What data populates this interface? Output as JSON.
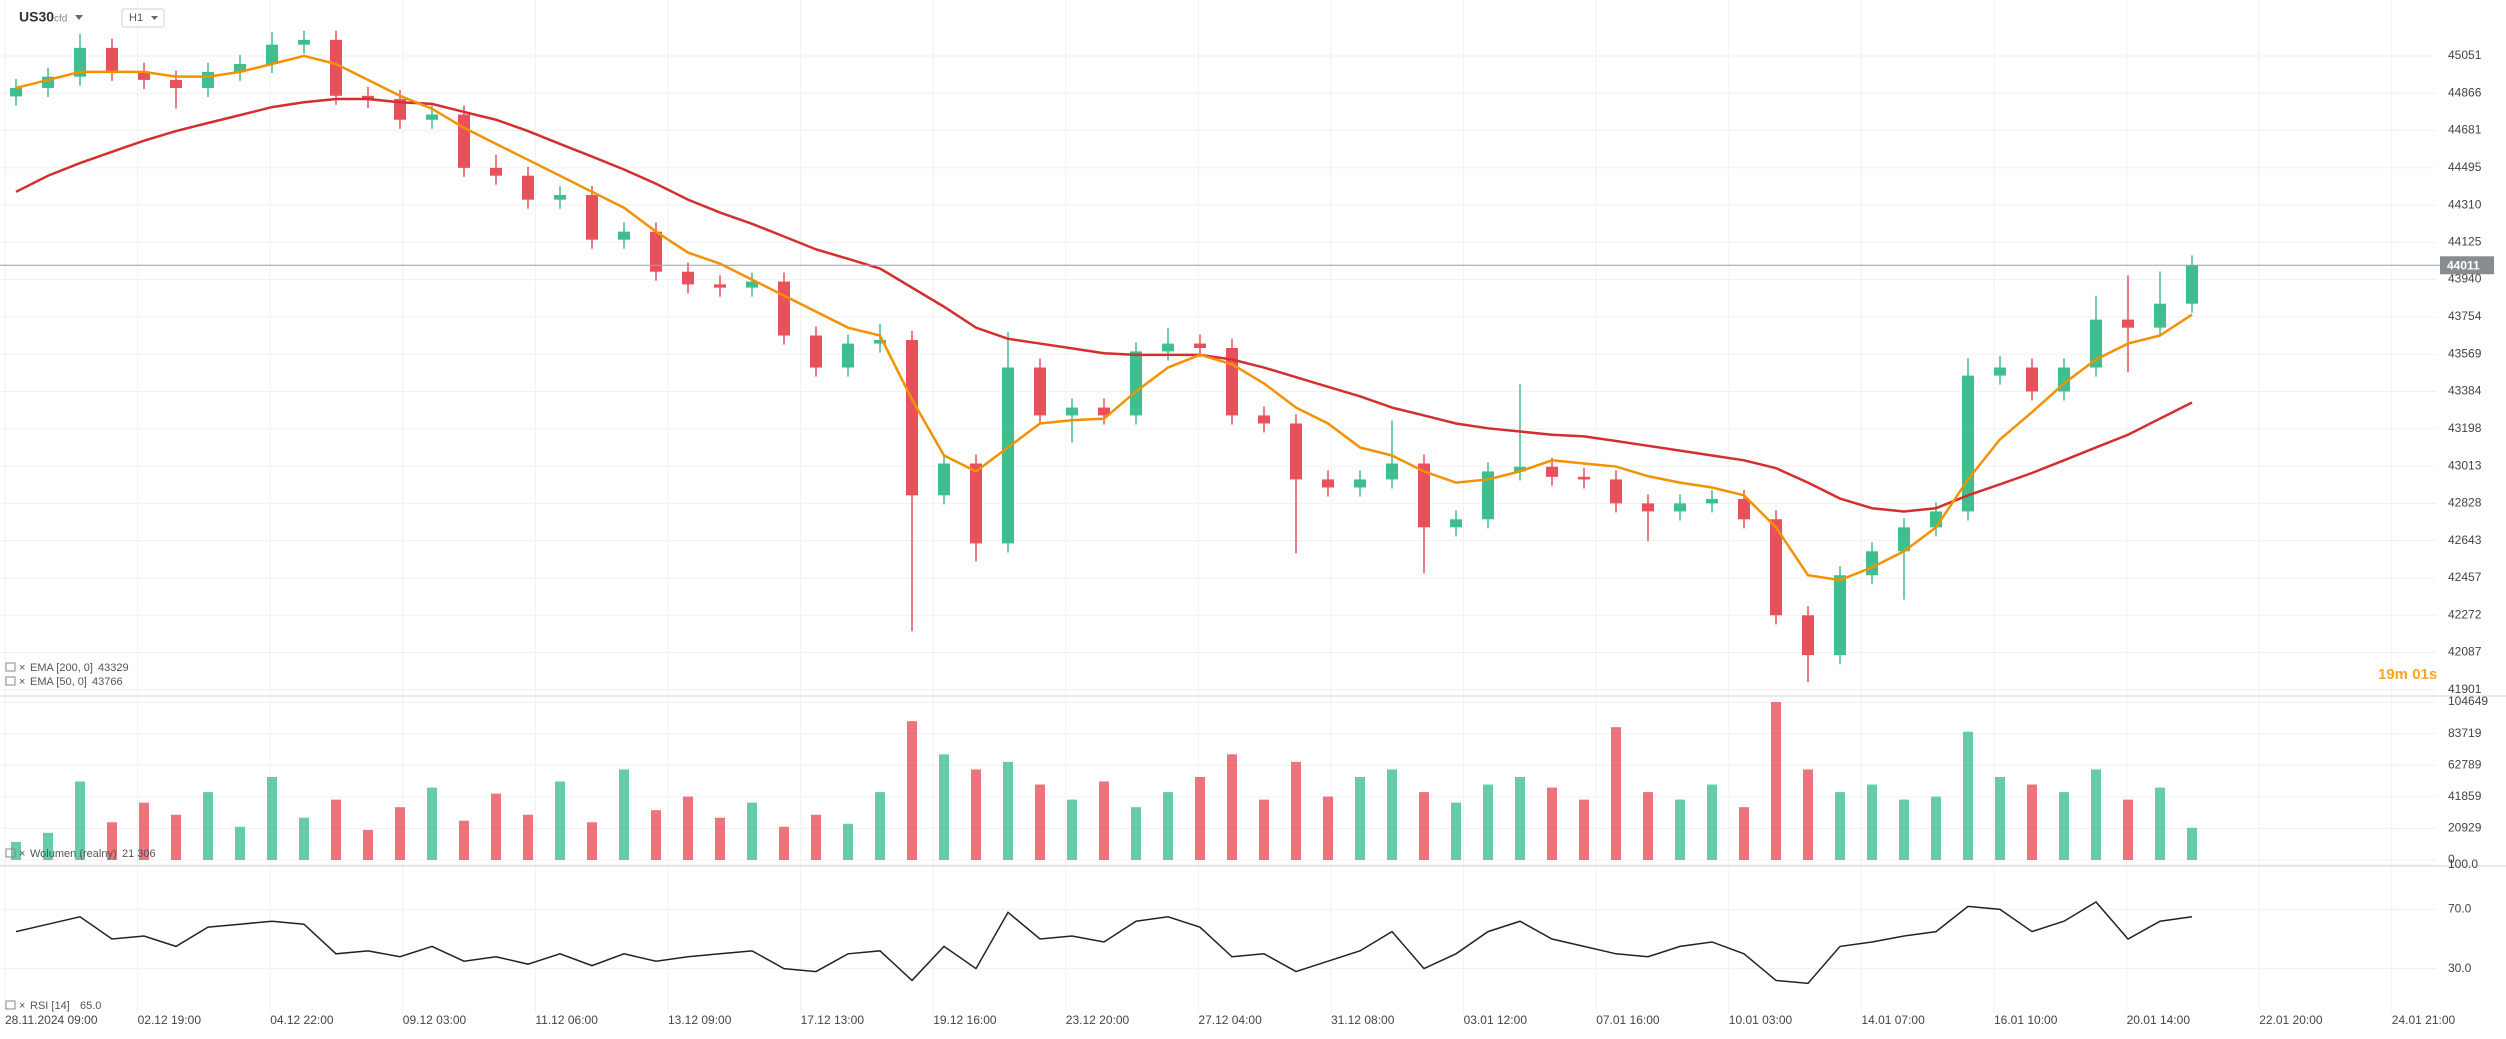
{
  "header": {
    "symbol": "US30",
    "instrument": "cfd",
    "timeframe": "H1"
  },
  "countdown": "19m 01s",
  "time_axis": [
    "28.11.2024 09:00",
    "02.12 19:00",
    "04.12 22:00",
    "09.12 03:00",
    "11.12 06:00",
    "13.12 09:00",
    "17.12 13:00",
    "19.12 16:00",
    "23.12 20:00",
    "27.12 04:00",
    "31.12 08:00",
    "03.01 12:00",
    "07.01 16:00",
    "10.01 03:00",
    "14.01 07:00",
    "16.01 10:00",
    "20.01 14:00",
    "22.01 20:00",
    "24.01 21:00"
  ],
  "chart_data": [
    {
      "type": "candlestick",
      "up_color": "#3fbf8f",
      "down_color": "#e8515b",
      "open": [
        44850,
        44892,
        44948,
        45091,
        44972,
        44932,
        44892,
        44972,
        45011,
        45107,
        45131,
        44853,
        44837,
        44734,
        44760,
        44495,
        44456,
        44337,
        44360,
        44138,
        44178,
        43979,
        43916,
        43900,
        43930,
        43662,
        43503,
        43622,
        43640,
        42868,
        43026,
        42629,
        43503,
        43265,
        43304,
        43265,
        43583,
        43622,
        43600,
        43265,
        43225,
        42947,
        42907,
        42947,
        43026,
        42709,
        42749,
        42987,
        43010,
        42960,
        42947,
        42828,
        42788,
        42828,
        42850,
        42749,
        42272,
        42074,
        42471,
        42590,
        42709,
        42788,
        43463,
        43503,
        43384,
        43503,
        43741,
        43701,
        43820
      ],
      "high": [
        44937,
        44993,
        45160,
        45136,
        45017,
        44977,
        45017,
        45056,
        45170,
        45176,
        45176,
        44898,
        44882,
        44805,
        44805,
        44560,
        44501,
        44405,
        44405,
        44223,
        44223,
        44024,
        43961,
        43975,
        43975,
        43707,
        43667,
        43720,
        43685,
        43071,
        43071,
        43680,
        43548,
        43349,
        43349,
        43628,
        43700,
        43667,
        43645,
        43310,
        43270,
        42992,
        42992,
        43240,
        43071,
        42794,
        43032,
        43420,
        43055,
        43005,
        42992,
        42873,
        42873,
        42895,
        42895,
        42794,
        42317,
        42516,
        42635,
        42754,
        42833,
        43550,
        43560,
        43548,
        43548,
        43860,
        43960,
        43980,
        44060
      ],
      "low": [
        44805,
        44847,
        44903,
        44927,
        44887,
        44790,
        44847,
        44927,
        44966,
        45062,
        44808,
        44792,
        44689,
        44689,
        44450,
        44411,
        44292,
        44292,
        44093,
        44093,
        43934,
        43871,
        43855,
        43855,
        43617,
        43458,
        43458,
        43577,
        42193,
        42823,
        42540,
        42584,
        43220,
        43130,
        43220,
        43220,
        43538,
        43555,
        43220,
        43180,
        42580,
        42862,
        42862,
        42902,
        42480,
        42664,
        42704,
        42942,
        42915,
        42902,
        42783,
        42640,
        42743,
        42783,
        42704,
        42227,
        41940,
        42029,
        42426,
        42350,
        42664,
        42743,
        43418,
        43339,
        43339,
        43458,
        43480,
        43656,
        43775
      ],
      "close": [
        44892,
        44948,
        45091,
        44972,
        44932,
        44892,
        44972,
        45011,
        45107,
        45131,
        44853,
        44837,
        44734,
        44760,
        44495,
        44456,
        44337,
        44360,
        44138,
        44178,
        43979,
        43916,
        43900,
        43930,
        43662,
        43503,
        43622,
        43640,
        42868,
        43026,
        42629,
        43503,
        43265,
        43304,
        43265,
        43583,
        43622,
        43600,
        43265,
        43225,
        42947,
        42907,
        42947,
        43026,
        42709,
        42749,
        42987,
        43010,
        42960,
        42947,
        42828,
        42788,
        42828,
        42850,
        42749,
        42272,
        42074,
        42471,
        42590,
        42709,
        42788,
        43463,
        43503,
        43384,
        43503,
        43741,
        43701,
        43820,
        44011
      ],
      "series": [
        {
          "name": "EMA [200, 0]",
          "color": "#d32f2f",
          "values": [
            44376,
            44456,
            44519,
            44575,
            44630,
            44678,
            44718,
            44757,
            44797,
            44821,
            44837,
            44837,
            44821,
            44813,
            44773,
            44734,
            44678,
            44614,
            44551,
            44487,
            44416,
            44337,
            44273,
            44217,
            44154,
            44090,
            44043,
            43995,
            43900,
            43805,
            43701,
            43646,
            43622,
            43598,
            43574,
            43566,
            43566,
            43566,
            43543,
            43503,
            43455,
            43407,
            43360,
            43304,
            43265,
            43225,
            43201,
            43185,
            43169,
            43161,
            43138,
            43114,
            43090,
            43066,
            43042,
            43003,
            42931,
            42852,
            42804,
            42788,
            42804,
            42868,
            42923,
            42979,
            43042,
            43106,
            43169,
            43249,
            43329
          ]
        },
        {
          "name": "EMA [50, 0]",
          "color": "#f39200",
          "values": [
            44892,
            44932,
            44972,
            44972,
            44972,
            44948,
            44948,
            44972,
            45011,
            45051,
            45011,
            44932,
            44853,
            44789,
            44694,
            44614,
            44535,
            44456,
            44376,
            44297,
            44178,
            44074,
            44019,
            43940,
            43860,
            43781,
            43701,
            43662,
            43344,
            43066,
            42987,
            43106,
            43225,
            43241,
            43249,
            43384,
            43503,
            43566,
            43519,
            43424,
            43304,
            43225,
            43106,
            43066,
            42987,
            42931,
            42947,
            42987,
            43042,
            43026,
            43011,
            42963,
            42931,
            42907,
            42868,
            42709,
            42471,
            42447,
            42510,
            42590,
            42709,
            42947,
            43146,
            43281,
            43424,
            43543,
            43622,
            43662,
            43766
          ]
        }
      ],
      "ylim": [
        41876,
        45329
      ],
      "yticks": [
        45051,
        44866,
        44681,
        44495,
        44310,
        44125,
        43940,
        43754,
        43569,
        43384,
        43198,
        43013,
        42828,
        42643,
        42457,
        42272,
        42087,
        41901
      ],
      "grid": true
    },
    {
      "type": "volume",
      "name": "Wolumen (realny)",
      "values": [
        12000,
        18000,
        52000,
        25000,
        38000,
        30000,
        45000,
        22000,
        55000,
        28000,
        40000,
        20000,
        35000,
        48000,
        26000,
        44000,
        30000,
        52000,
        25000,
        60000,
        33000,
        42000,
        28000,
        38000,
        22000,
        30000,
        24000,
        45000,
        92000,
        70000,
        60000,
        65000,
        50000,
        40000,
        52000,
        35000,
        45000,
        55000,
        70000,
        40000,
        65000,
        42000,
        55000,
        60000,
        45000,
        38000,
        50000,
        55000,
        48000,
        40000,
        88000,
        45000,
        40000,
        50000,
        35000,
        104649,
        60000,
        45000,
        50000,
        40000,
        42000,
        85000,
        55000,
        50000,
        45000,
        60000,
        40000,
        48000,
        21306
      ],
      "last_value_label": "21 306",
      "ylim": [
        0,
        106000
      ],
      "yticks": [
        104649,
        83719,
        62789,
        41859,
        20929,
        0
      ]
    },
    {
      "type": "rsi",
      "name": "RSI [14]",
      "color": "#222222",
      "values": [
        55,
        60,
        65,
        50,
        52,
        45,
        58,
        60,
        62,
        60,
        40,
        42,
        38,
        45,
        35,
        38,
        33,
        40,
        32,
        40,
        35,
        38,
        40,
        42,
        30,
        28,
        40,
        42,
        22,
        45,
        30,
        68,
        50,
        52,
        48,
        62,
        65,
        58,
        38,
        40,
        28,
        35,
        42,
        55,
        30,
        40,
        55,
        62,
        50,
        45,
        40,
        38,
        45,
        48,
        40,
        22,
        20,
        45,
        48,
        52,
        55,
        72,
        70,
        55,
        62,
        75,
        50,
        62,
        65
      ],
      "last_value_label": "65.0",
      "ylim": [
        0,
        100
      ],
      "yticks": [
        {
          "value": 100,
          "label": "100.0"
        },
        {
          "value": 70,
          "label": "70.0"
        },
        {
          "value": 30,
          "label": "30.0"
        }
      ]
    }
  ]
}
